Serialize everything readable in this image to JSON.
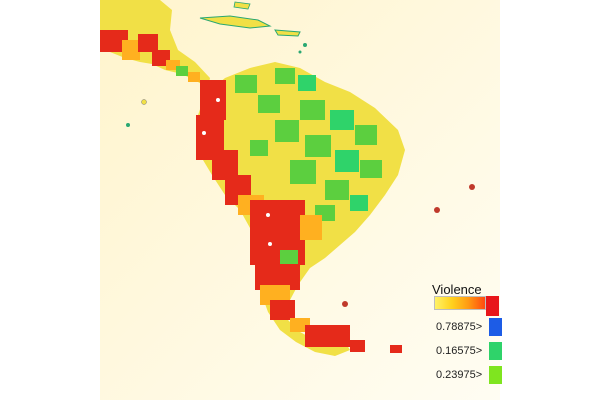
{
  "legend": {
    "title": "Violence",
    "items": [
      {
        "label": "0.78875>",
        "color": "#1d5ce6"
      },
      {
        "label": "0.16575>",
        "color": "#2fd36a"
      },
      {
        "label": "0.23975>",
        "color": "#7fe51f"
      }
    ],
    "gradient_colors": [
      "#fff266",
      "#ffd21e",
      "#ff9a12",
      "#ff4a10"
    ],
    "max_color": "#e8161a"
  },
  "colors": {
    "background": "#fff6d6",
    "land": "#f1e046",
    "high": "#e52a1a",
    "medium": "#ffb020",
    "low": "#5ccf3f",
    "water_accent": "#2aa872"
  }
}
